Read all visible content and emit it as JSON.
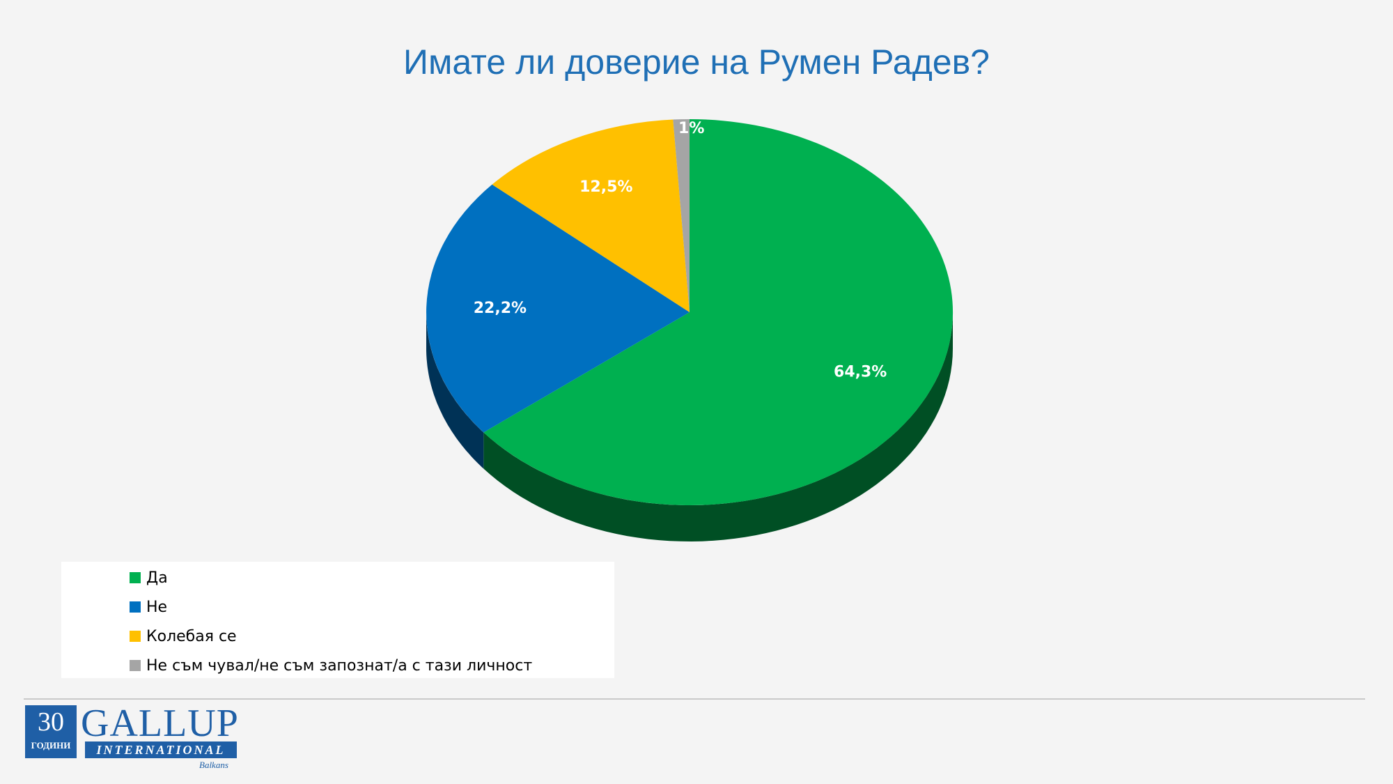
{
  "chart_data": {
    "type": "pie",
    "title": "Имате ли доверие на Румен Радев?",
    "categories": [
      "Да",
      "Не",
      "Колебая се",
      "Не съм чувал/не съм запознат/а с тази личност"
    ],
    "values": [
      64.3,
      22.2,
      12.5,
      1
    ],
    "labels": [
      "64,3%",
      "22,2%",
      "12,5%",
      "1%"
    ],
    "colors": [
      "#00b050",
      "#0070c0",
      "#ffc000",
      "#a5a5a5"
    ],
    "legend_position": "bottom-left",
    "style": "3d"
  },
  "logo": {
    "number": "30",
    "subtitle": "ГОДИНИ",
    "brand": "GALLUP",
    "brand_line2": "INTERNATIONAL",
    "region": "Balkans"
  }
}
